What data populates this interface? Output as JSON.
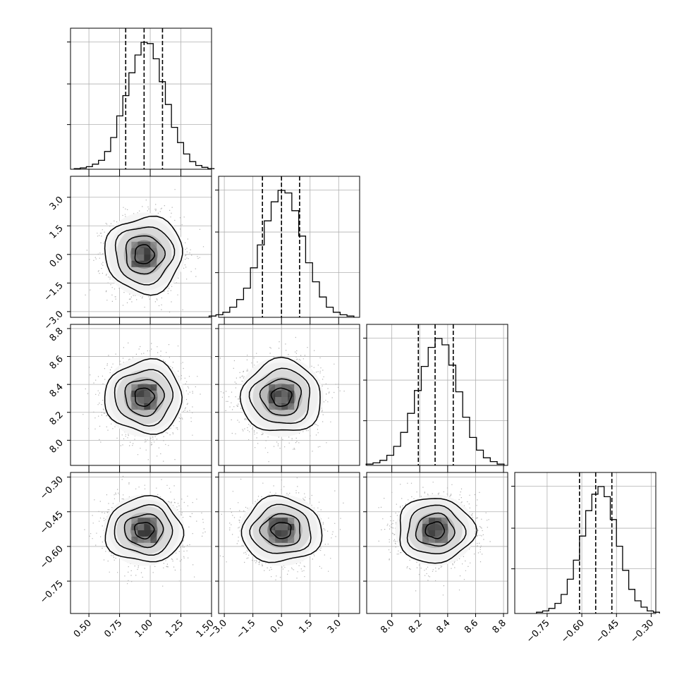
{
  "chart_data": {
    "type": "corner",
    "params": [
      {
        "center": 0.95,
        "std": 0.15,
        "qlo": 0.8,
        "qmed": 0.95,
        "qhi": 1.1,
        "range": [
          0.35,
          1.5
        ],
        "ticks": [
          "0.50",
          "0.75",
          "1.00",
          "1.25",
          "1.50"
        ],
        "tickvals": [
          0.5,
          0.75,
          1.0,
          1.25,
          1.5
        ]
      },
      {
        "center": 0.0,
        "std": 1.0,
        "qlo": -1.0,
        "qmed": 0.0,
        "qhi": 0.95,
        "range": [
          -3.3,
          4.1
        ],
        "ticks": [
          "−3.0",
          "−1.5",
          "0.0",
          "1.5",
          "3.0"
        ],
        "tickvals": [
          -3.0,
          -1.5,
          0.0,
          1.5,
          3.0
        ]
      },
      {
        "center": 8.31,
        "std": 0.13,
        "qlo": 8.19,
        "qmed": 8.31,
        "qhi": 8.44,
        "range": [
          7.82,
          8.83
        ],
        "ticks": [
          "8.0",
          "8.2",
          "8.4",
          "8.6",
          "8.8"
        ],
        "tickvals": [
          8.0,
          8.2,
          8.4,
          8.6,
          8.8
        ]
      },
      {
        "center": -0.53,
        "std": 0.07,
        "qlo": -0.61,
        "qmed": -0.54,
        "qhi": -0.47,
        "range": [
          -0.89,
          -0.28
        ],
        "ticks": [
          "−0.75",
          "−0.60",
          "−0.45",
          "−0.30"
        ],
        "tickvals": [
          -0.75,
          -0.6,
          -0.45,
          -0.3
        ]
      }
    ],
    "histograms": [
      [
        0.005,
        0.01,
        0.02,
        0.04,
        0.07,
        0.14,
        0.25,
        0.42,
        0.58,
        0.76,
        0.9,
        1.0,
        0.99,
        0.87,
        0.69,
        0.51,
        0.33,
        0.21,
        0.12,
        0.06,
        0.03,
        0.015,
        0.005
      ],
      [
        0.01,
        0.02,
        0.04,
        0.08,
        0.14,
        0.23,
        0.39,
        0.57,
        0.76,
        0.91,
        1.0,
        0.98,
        0.84,
        0.64,
        0.43,
        0.28,
        0.16,
        0.08,
        0.04,
        0.02,
        0.01
      ],
      [
        0.01,
        0.02,
        0.04,
        0.08,
        0.15,
        0.26,
        0.41,
        0.59,
        0.78,
        0.93,
        1.0,
        0.95,
        0.79,
        0.58,
        0.38,
        0.22,
        0.12,
        0.06,
        0.03,
        0.01
      ],
      [
        0.01,
        0.02,
        0.04,
        0.08,
        0.15,
        0.27,
        0.42,
        0.61,
        0.81,
        0.94,
        1.0,
        0.92,
        0.74,
        0.53,
        0.34,
        0.19,
        0.1,
        0.05,
        0.02,
        0.01
      ]
    ],
    "quantile_lines": [
      "16%",
      "50%",
      "84%"
    ],
    "contour_levels_sigma": [
      0.5,
      1.0,
      1.5,
      2.0
    ],
    "grid": true,
    "colors": {
      "line": "#000000",
      "points": "#b0b0b0",
      "grid": "#b0b0b0"
    }
  }
}
